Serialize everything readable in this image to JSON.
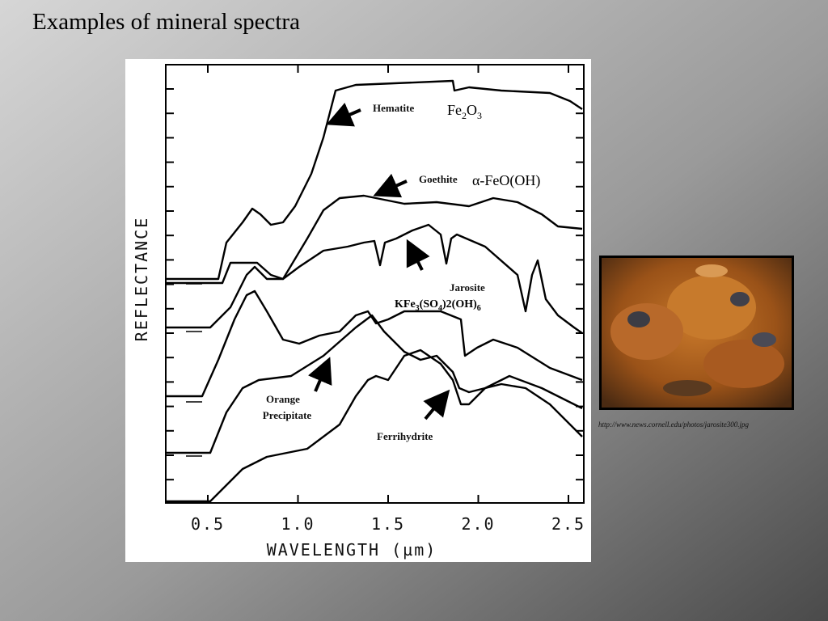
{
  "title": "Examples of mineral spectra",
  "figure": {
    "y_label": "REFLECTANCE",
    "x_label": "WAVELENGTH (µm)",
    "x_ticks": [
      "0.5",
      "1.0",
      "1.5",
      "2.0",
      "2.5"
    ],
    "minerals": [
      {
        "name": "Hematite",
        "formula": [
          "Fe",
          "2",
          "O",
          "3"
        ]
      },
      {
        "name": "Goethite",
        "formula": [
          "α-FeO(OH)"
        ]
      },
      {
        "name": "Jarosite",
        "formula": [
          "KFe",
          "3",
          "(SO",
          "4",
          ")2(OH)",
          "6"
        ]
      },
      {
        "name": [
          "Orange",
          "Precipitate"
        ]
      },
      {
        "name": "Ferrihydrite"
      }
    ]
  },
  "photo_caption": "http://www.news.cornell.edu/photos/jarosite300.jpg"
}
